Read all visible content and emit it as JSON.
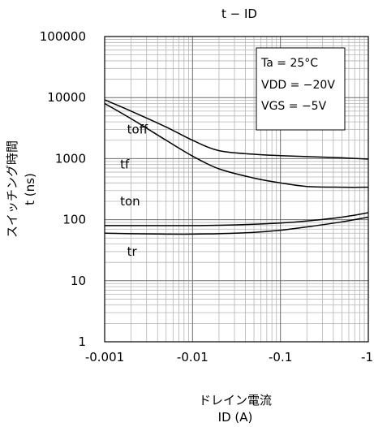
{
  "chart_data": {
    "type": "line",
    "title": "t − ID",
    "xlabel_line1": "ドレイン電流",
    "xlabel_line2": "ID (A)",
    "ylabel_line1": "スイッチング時間",
    "ylabel_line2": "t (ns)",
    "x_scale": "log",
    "y_scale": "log",
    "xlim": [
      0.001,
      1
    ],
    "ylim": [
      1,
      100000
    ],
    "x_ticks": [
      {
        "value": 0.001,
        "label": "-0.001"
      },
      {
        "value": 0.01,
        "label": "-0.01"
      },
      {
        "value": 0.1,
        "label": "-0.1"
      },
      {
        "value": 1,
        "label": "-1"
      }
    ],
    "y_ticks": [
      {
        "value": 1,
        "label": "1"
      },
      {
        "value": 10,
        "label": "10"
      },
      {
        "value": 100,
        "label": "100"
      },
      {
        "value": 1000,
        "label": "1000"
      },
      {
        "value": 10000,
        "label": "10000"
      },
      {
        "value": 100000,
        "label": "100000"
      }
    ],
    "grid": true,
    "conditions": [
      "Ta = 25°C",
      "VDD = −20V",
      "VGS = −5V"
    ],
    "series": [
      {
        "name": "toff",
        "x": [
          0.001,
          0.002,
          0.005,
          0.01,
          0.02,
          0.05,
          0.1,
          0.2,
          0.5,
          1
        ],
        "y": [
          9200,
          6000,
          3300,
          2000,
          1350,
          1180,
          1120,
          1080,
          1030,
          980
        ]
      },
      {
        "name": "tf",
        "x": [
          0.001,
          0.002,
          0.005,
          0.01,
          0.02,
          0.05,
          0.1,
          0.2,
          0.5,
          1
        ],
        "y": [
          8000,
          4500,
          2000,
          1100,
          680,
          480,
          400,
          350,
          340,
          340
        ]
      },
      {
        "name": "ton",
        "x": [
          0.001,
          0.002,
          0.005,
          0.01,
          0.02,
          0.05,
          0.1,
          0.2,
          0.5,
          1
        ],
        "y": [
          80,
          80,
          80,
          80,
          81,
          84,
          88,
          95,
          110,
          130
        ]
      },
      {
        "name": "tr",
        "x": [
          0.001,
          0.002,
          0.005,
          0.01,
          0.02,
          0.05,
          0.1,
          0.2,
          0.5,
          1
        ],
        "y": [
          60,
          59,
          58,
          58,
          59,
          62,
          67,
          76,
          92,
          110
        ]
      }
    ],
    "series_labels": [
      {
        "text": "toff",
        "x": 0.0018,
        "y": 3000
      },
      {
        "text": "tf",
        "x": 0.0015,
        "y": 800
      },
      {
        "text": "ton",
        "x": 0.0015,
        "y": 200
      },
      {
        "text": "tr",
        "x": 0.0018,
        "y": 30
      }
    ]
  }
}
